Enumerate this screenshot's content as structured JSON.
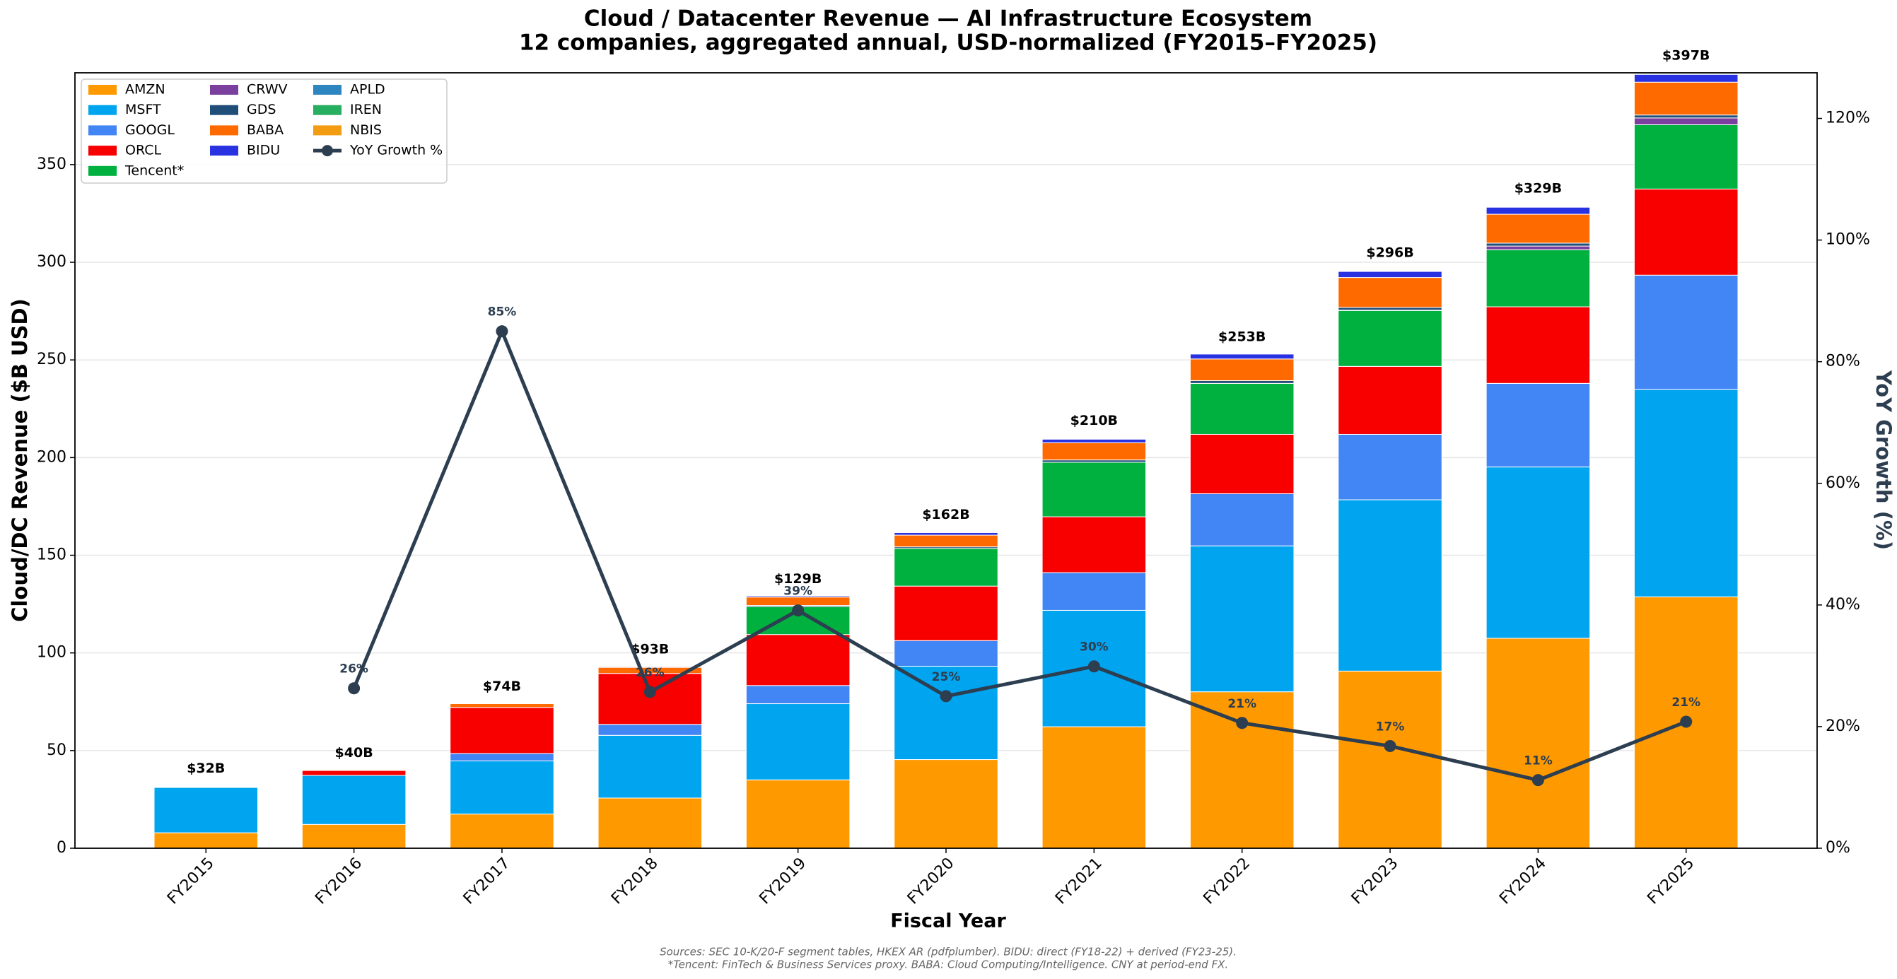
{
  "chart_data": {
    "type": "bar",
    "stacked": true,
    "title": "Cloud / Datacenter Revenue — AI Infrastructure Ecosystem",
    "subtitle": "12 companies, aggregated annual, USD-normalized (FY2015–FY2025)",
    "xlabel": "Fiscal Year",
    "ylabel": "Cloud/DC Revenue ($B USD)",
    "y2label": "YoY Growth (%)",
    "categories": [
      "FY2015",
      "FY2016",
      "FY2017",
      "FY2018",
      "FY2019",
      "FY2020",
      "FY2021",
      "FY2022",
      "FY2023",
      "FY2024",
      "FY2025"
    ],
    "ylim": [
      0,
      397
    ],
    "yticks": [
      0,
      50,
      100,
      150,
      200,
      250,
      300,
      350
    ],
    "y2lim": [
      0,
      127.5
    ],
    "y2ticks": [
      {
        "value": 0,
        "label": "0%"
      },
      {
        "value": 20,
        "label": "20%"
      },
      {
        "value": 40,
        "label": "40%"
      },
      {
        "value": 60,
        "label": "60%"
      },
      {
        "value": 80,
        "label": "80%"
      },
      {
        "value": 100,
        "label": "100%"
      },
      {
        "value": 120,
        "label": "120%"
      }
    ],
    "grid": true,
    "legend": "upper left",
    "series": [
      {
        "name": "AMZN",
        "color": "#ff9900",
        "values": [
          7.9,
          12.2,
          17.5,
          25.7,
          35.0,
          45.4,
          62.2,
          80.1,
          90.7,
          107.5,
          128.7
        ]
      },
      {
        "name": "MSFT",
        "color": "#00a4ef",
        "values": [
          23.2,
          25.1,
          27.2,
          32.1,
          39.0,
          47.8,
          59.6,
          74.7,
          87.7,
          87.7,
          106.2
        ]
      },
      {
        "name": "GOOGL",
        "color": "#4285f4",
        "values": [
          0,
          0,
          3.8,
          5.6,
          9.3,
          13.1,
          19.3,
          26.7,
          33.5,
          42.8,
          58.5
        ]
      },
      {
        "name": "ORCL",
        "color": "#f80000",
        "values": [
          0,
          2.5,
          23.6,
          26.1,
          26.1,
          27.9,
          28.6,
          30.4,
          34.8,
          39.2,
          44.1
        ]
      },
      {
        "name": "Tencent*",
        "color": "#00b140",
        "values": [
          0,
          0,
          0,
          0,
          14.3,
          19.3,
          27.9,
          26.1,
          28.6,
          29.2,
          32.9
        ]
      },
      {
        "name": "CRWV",
        "color": "#7b3f9e",
        "values": [
          0,
          0,
          0,
          0,
          0,
          0,
          0,
          0,
          0.2,
          1.9,
          3.5
        ]
      },
      {
        "name": "GDS",
        "color": "#1f4e79",
        "values": [
          0,
          0,
          0,
          0,
          0.6,
          0.8,
          1.2,
          1.4,
          1.4,
          1.5,
          1.5
        ]
      },
      {
        "name": "BABA",
        "color": "#ff6a00",
        "values": [
          0,
          0,
          1.9,
          3.1,
          4.3,
          6.0,
          8.8,
          11.1,
          15.3,
          14.8,
          16.8
        ]
      },
      {
        "name": "BIDU",
        "color": "#2932e1",
        "values": [
          0,
          0,
          0,
          0.4,
          0.6,
          1.3,
          1.8,
          2.5,
          3.1,
          3.6,
          4.0
        ]
      },
      {
        "name": "APLD",
        "color": "#2e86c1",
        "values": [
          0,
          0,
          0,
          0,
          0,
          0,
          0,
          0,
          0.1,
          0.2,
          0.2
        ]
      },
      {
        "name": "IREN",
        "color": "#27ae60",
        "values": [
          0,
          0,
          0,
          0,
          0,
          0,
          0,
          0,
          0.1,
          0.2,
          0.5
        ]
      },
      {
        "name": "NBIS",
        "color": "#f39c12",
        "values": [
          0,
          0,
          0,
          0,
          0,
          0,
          0,
          0,
          0,
          0.1,
          0.5
        ]
      },
      {
        "name": "YoY Growth %",
        "color": "#2c3e50",
        "axis": "y2",
        "type": "line",
        "values": [
          null,
          26.3,
          85.0,
          25.7,
          39.1,
          25.0,
          29.9,
          20.6,
          16.8,
          11.2,
          20.8
        ],
        "value_labels": [
          null,
          "26%",
          "85%",
          "26%",
          "39%",
          "25%",
          "30%",
          "21%",
          "17%",
          "11%",
          "21%"
        ]
      }
    ],
    "totals": {
      "values": [
        32,
        40,
        74,
        93,
        129,
        162,
        210,
        253,
        296,
        329,
        397
      ],
      "value_labels": [
        "$32B",
        "$40B",
        "$74B",
        "$93B",
        "$129B",
        "$162B",
        "$210B",
        "$253B",
        "$296B",
        "$329B",
        "$397B"
      ]
    },
    "notes": [
      "Sources: SEC 10-K/20-F segment tables, HKEX AR (pdfplumber). BIDU: direct (FY18-22) + derived (FY23-25).",
      "*Tencent: FinTech & Business Services proxy. BABA: Cloud Computing/Intelligence. CNY at period-end FX."
    ]
  }
}
